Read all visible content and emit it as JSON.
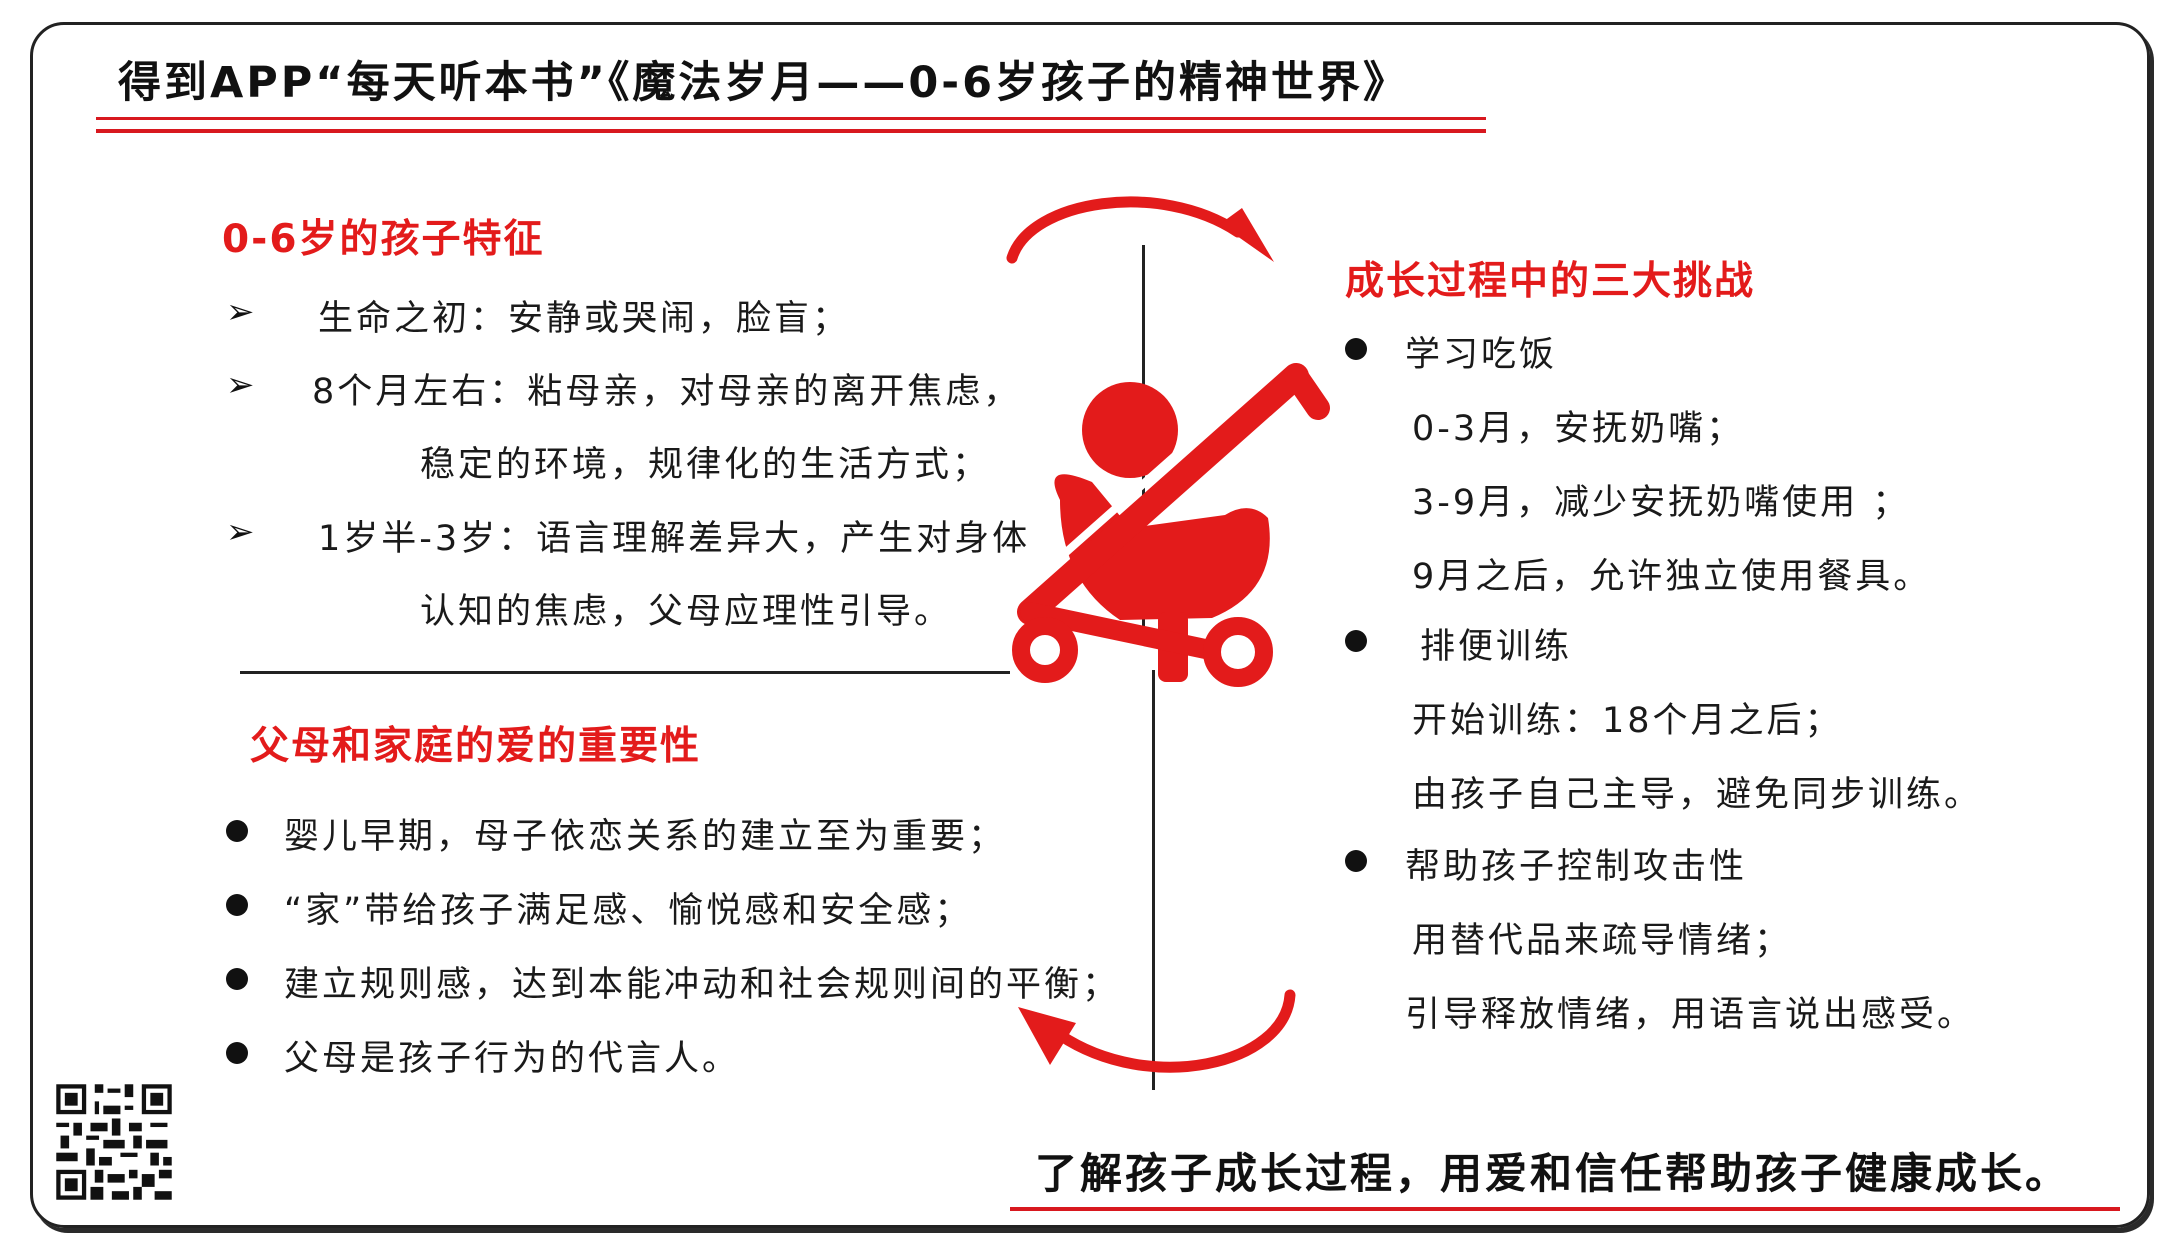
{
  "title": "得到APP“每天听本书”《魔法岁月——0-6岁孩子的精神世界》",
  "features": {
    "heading": "0-6岁的孩子特征",
    "items": [
      {
        "line1": "生命之初：安静或哭闹，脸盲；",
        "line2": ""
      },
      {
        "line1": "8个月左右：粘母亲，对母亲的离开焦虑，",
        "line2": "稳定的环境，规律化的生活方式；"
      },
      {
        "line1": "1岁半-3岁：语言理解差异大，产生对身体",
        "line2": "认知的焦虑，父母应理性引导。"
      }
    ]
  },
  "love": {
    "heading": "父母和家庭的爱的重要性",
    "items": [
      "婴儿早期，母子依恋关系的建立至为重要；",
      "“家”带给孩子满足感、愉悦感和安全感；",
      "建立规则感，达到本能冲动和社会规则间的平衡；",
      "父母是孩子行为的代言人。"
    ]
  },
  "challenges": {
    "heading": "成长过程中的三大挑战",
    "groups": [
      {
        "title": "学习吃饭",
        "lines": [
          "0-3月，安抚奶嘴；",
          "3-9月，减少安抚奶嘴使用 ；",
          "9月之后，允许独立使用餐具。"
        ]
      },
      {
        "title": "排便训练",
        "lines": [
          "开始训练：18个月之后；",
          "由孩子自己主导，避免同步训练。"
        ]
      },
      {
        "title": "帮助孩子控制攻击性",
        "lines": [
          "用替代品来疏导情绪；",
          "引导释放情绪，用语言说出感受。"
        ]
      }
    ]
  },
  "slogan": "了解孩子成长过程，用爱和信任帮助孩子健康成长。",
  "icons": {
    "center": "baby-stroller-icon",
    "qr": "qr-code-icon"
  },
  "colors": {
    "accent": "#e31b1b",
    "ink": "#1a1a1a"
  }
}
